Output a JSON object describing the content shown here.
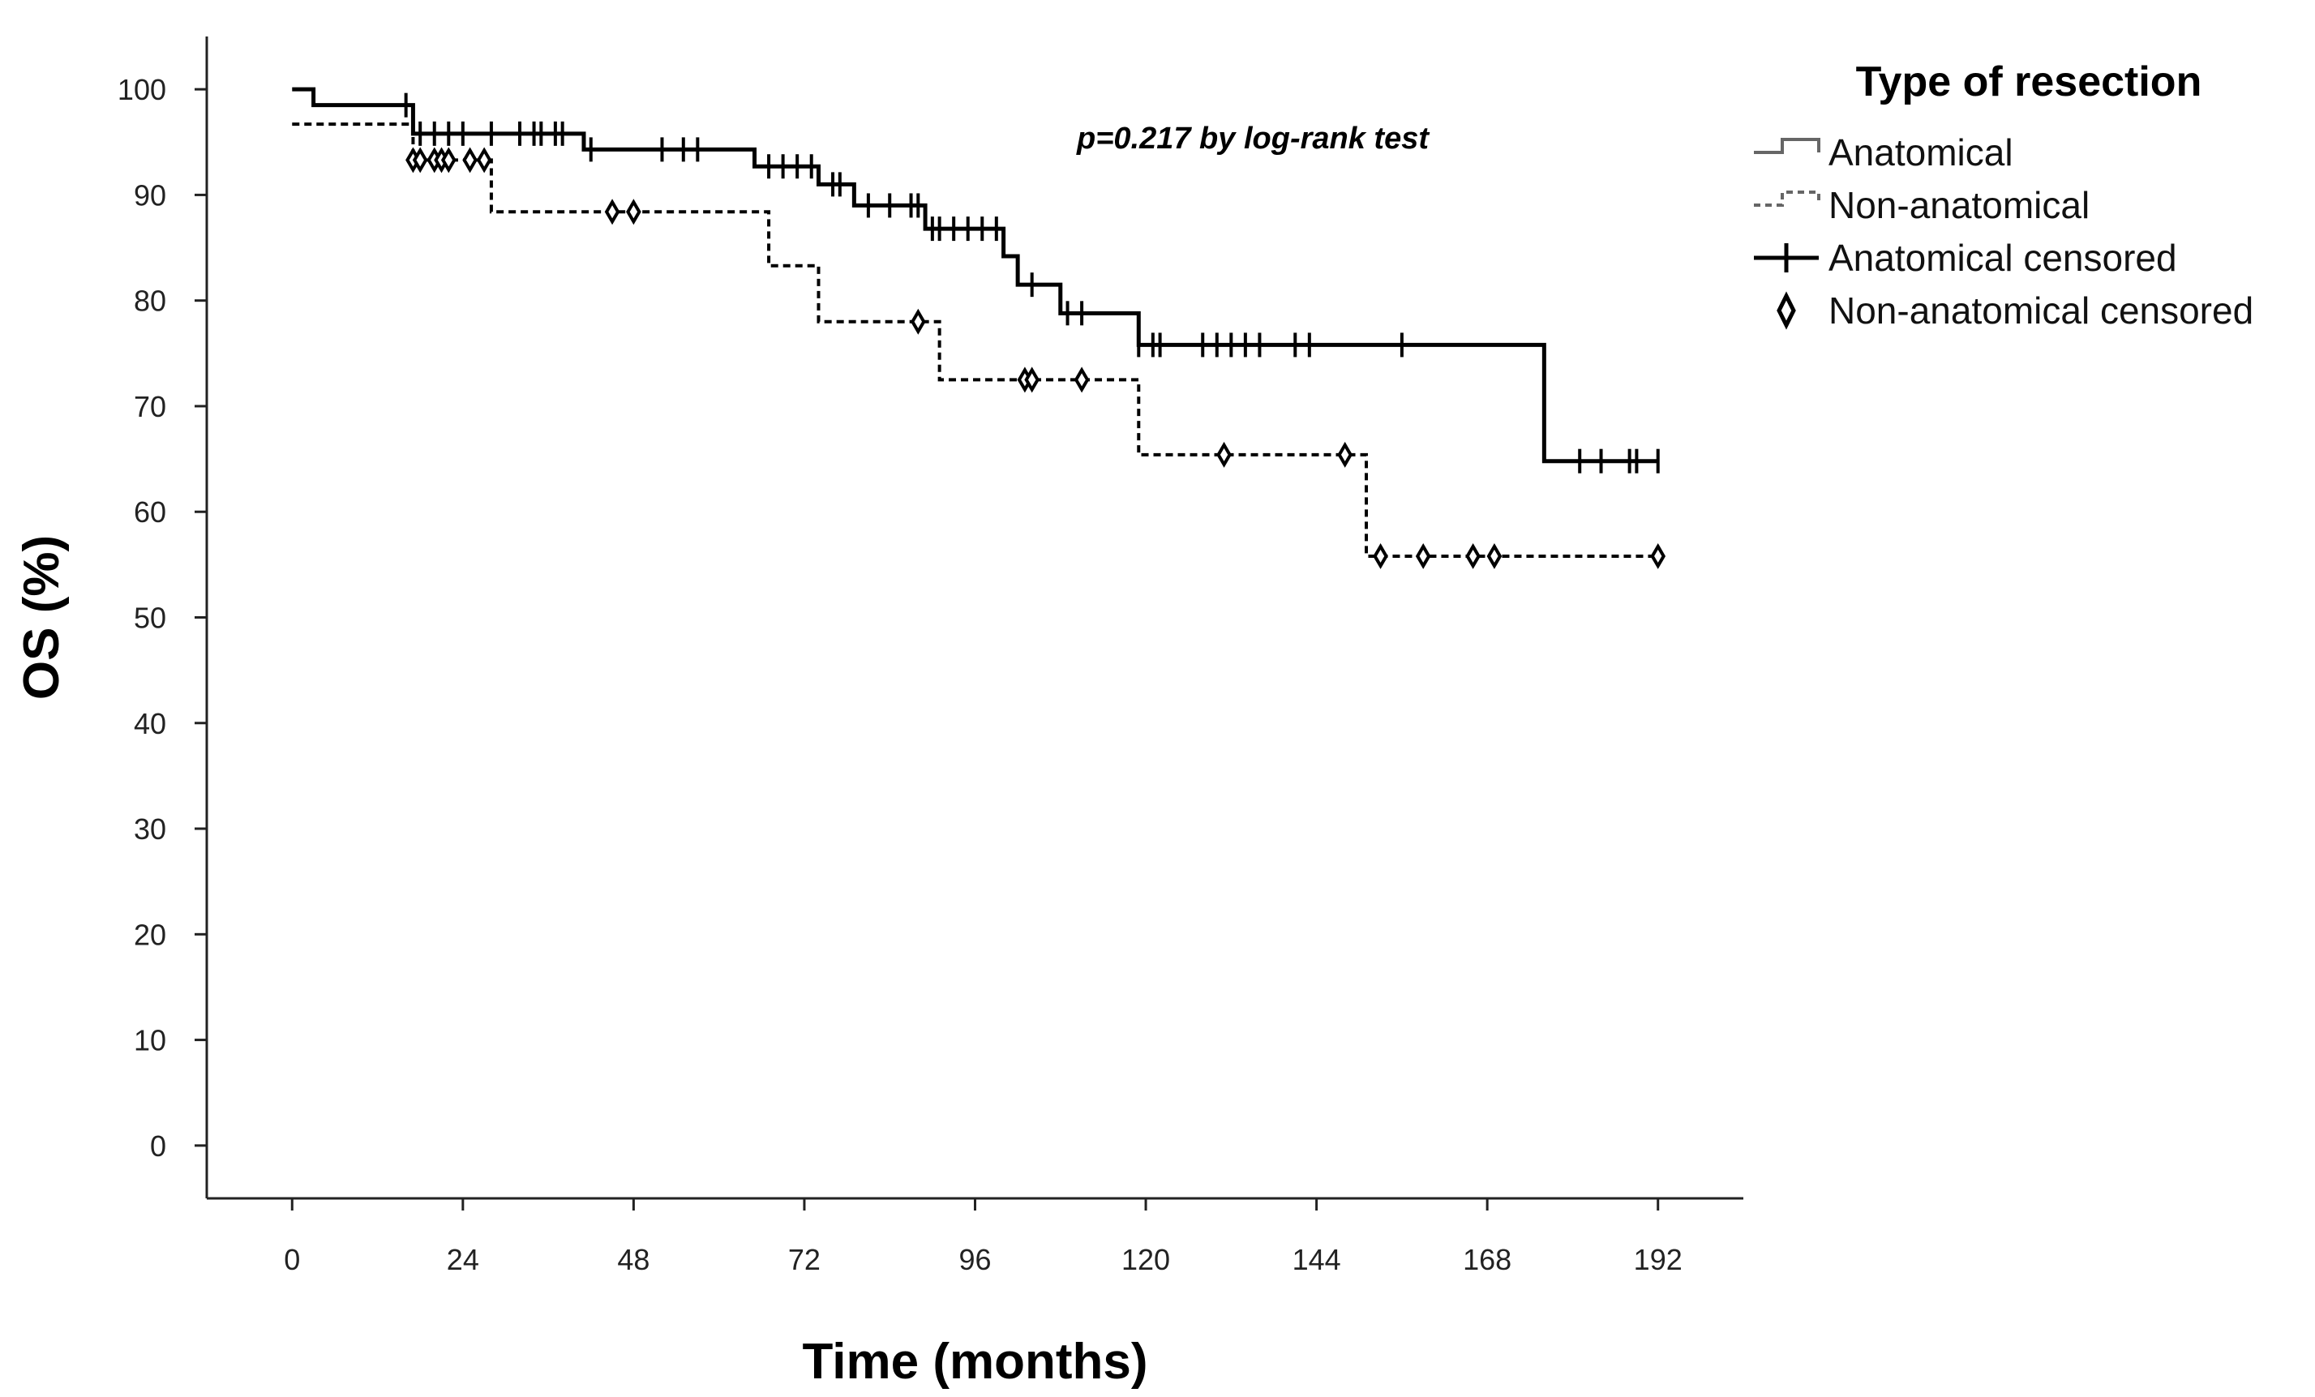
{
  "chart_data": {
    "type": "line",
    "subtype": "kaplan-meier",
    "title": "",
    "xlabel": "Time (months)",
    "ylabel": "OS (%)",
    "xlim": [
      -12,
      204
    ],
    "ylim": [
      -5,
      105
    ],
    "xticks": [
      0,
      24,
      48,
      72,
      96,
      120,
      144,
      168,
      192
    ],
    "yticks": [
      0,
      10,
      20,
      30,
      40,
      50,
      60,
      70,
      80,
      90,
      100
    ],
    "legend_title": "Type of resection",
    "legend_position": "top-right, outside plot",
    "annotation": "p=0.217 by log-rank test",
    "series": [
      {
        "name": "Anatomical",
        "style": "solid",
        "steps": [
          [
            0,
            100
          ],
          [
            3,
            98.5
          ],
          [
            17,
            95.8
          ],
          [
            41,
            94.3
          ],
          [
            65,
            92.7
          ],
          [
            74,
            91
          ],
          [
            79,
            89
          ],
          [
            89,
            86.8
          ],
          [
            100,
            84.2
          ],
          [
            102,
            81.5
          ],
          [
            108,
            78.8
          ],
          [
            119,
            75.8
          ],
          [
            176,
            64.8
          ],
          [
            192,
            64.8
          ]
        ],
        "censored_name": "Anatomical censored",
        "censored": [
          16,
          18,
          20,
          22,
          24,
          28,
          32,
          34,
          35,
          37,
          38,
          42,
          52,
          55,
          57,
          67,
          69,
          71,
          73,
          76,
          77,
          81,
          84,
          87,
          88,
          90,
          91,
          93,
          95,
          97,
          99,
          104,
          109,
          111,
          119,
          121,
          122,
          128,
          130,
          132,
          134,
          136,
          141,
          143,
          156,
          181,
          184,
          188,
          189,
          192
        ]
      },
      {
        "name": "Non-anatomical",
        "style": "dashed",
        "steps": [
          [
            0,
            96.7
          ],
          [
            17,
            93.3
          ],
          [
            28,
            88.4
          ],
          [
            67,
            83.3
          ],
          [
            74,
            78
          ],
          [
            91,
            72.5
          ],
          [
            119,
            65.4
          ],
          [
            151,
            55.8
          ],
          [
            192,
            55.8
          ]
        ],
        "censored_name": "Non-anatomical censored",
        "censored": [
          17,
          18,
          20,
          21,
          22,
          25,
          27,
          45,
          48,
          88,
          103,
          104,
          111,
          131,
          148,
          153,
          159,
          166,
          169,
          192
        ]
      }
    ]
  }
}
